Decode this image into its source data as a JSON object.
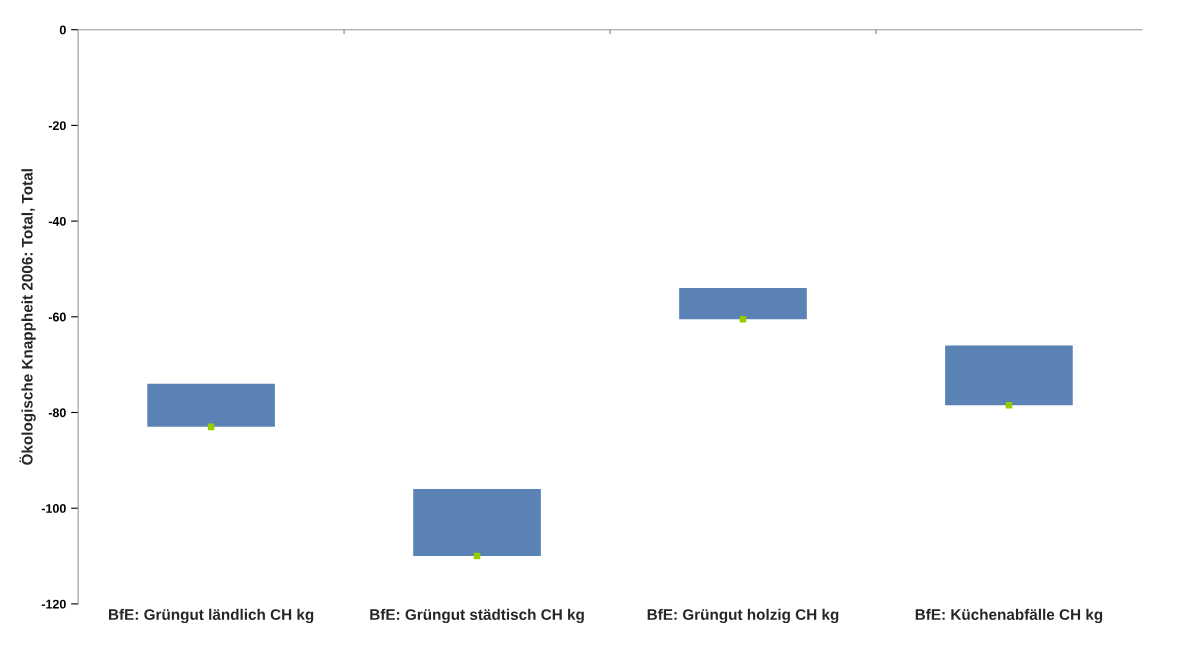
{
  "chart_data": {
    "type": "bar",
    "ylabel": "Ökologische Knappheit 2006: Total, Total",
    "categories": [
      "BfE: Grüngut ländlich CH kg",
      "BfE: Grüngut städtisch CH kg",
      "BfE: Grüngut holzig CH kg",
      "BfE: Küchenabfälle CH kg"
    ],
    "series": [
      {
        "type": "bar",
        "color": "#5b82b5",
        "base": [
          -83,
          -110,
          -60.5,
          -78.5
        ],
        "values": [
          9,
          14,
          6.5,
          12.5
        ]
      },
      {
        "type": "scatter",
        "color": "#99cc00",
        "marker": "square",
        "x": [
          "BfE: Grüngut ländlich CH kg",
          "BfE: Grüngut städtisch CH kg",
          "BfE: Grüngut holzig CH kg",
          "BfE: Küchenabfälle CH kg"
        ],
        "values": [
          -83,
          -110,
          -60.5,
          -78.5
        ]
      }
    ],
    "ylim": [
      -120,
      0
    ],
    "yticks": [
      0,
      -20,
      -40,
      -60,
      -80,
      -100,
      -120
    ],
    "grid": false,
    "legend": false
  }
}
